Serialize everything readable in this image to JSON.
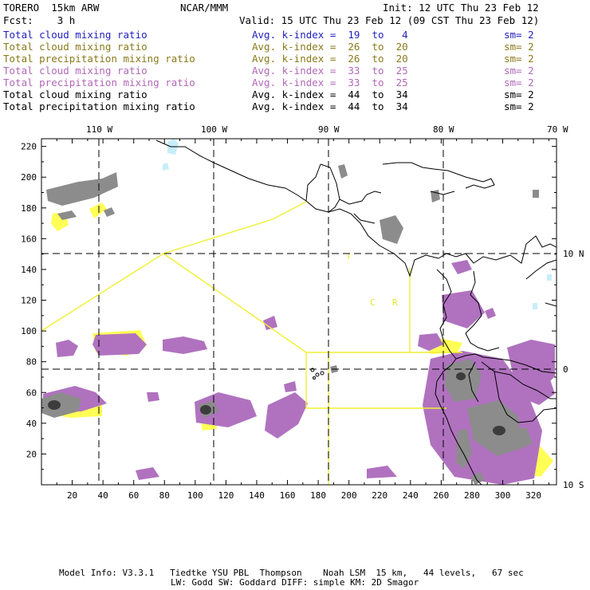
{
  "header": {
    "model": "TORERO  15km ARW",
    "center": "NCAR/MMM",
    "init": "Init: 12 UTC Thu 23 Feb 12",
    "fcst": "Fcst:    3 h",
    "valid": "Valid: 15 UTC Thu 23 Feb 12 (09 CST Thu 23 Feb 12)"
  },
  "legend": [
    {
      "field": "Total cloud mixing ratio",
      "kindex": "Avg. k-index =  19  to   4",
      "sm": "sm= 2",
      "color": "#1f1fbf"
    },
    {
      "field": "Total cloud mixing ratio",
      "kindex": "Avg. k-index =  26  to  20",
      "sm": "sm= 2",
      "color": "#8a7a1a"
    },
    {
      "field": "Total precipitation mixing ratio",
      "kindex": "Avg. k-index =  26  to  20",
      "sm": "sm= 2",
      "color": "#8a7a1a"
    },
    {
      "field": "Total cloud mixing ratio",
      "kindex": "Avg. k-index =  33  to  25",
      "sm": "sm= 2",
      "color": "#b068b8"
    },
    {
      "field": "Total precipitation mixing ratio",
      "kindex": "Avg. k-index =  33  to  25",
      "sm": "sm= 2",
      "color": "#b068b8"
    },
    {
      "field": "Total cloud mixing ratio",
      "kindex": "Avg. k-index =  44  to  34",
      "sm": "sm= 2",
      "color": "#000000"
    },
    {
      "field": "Total precipitation mixing ratio",
      "kindex": "Avg. k-index =  44  to  34",
      "sm": "sm= 2",
      "color": "#000000"
    }
  ],
  "map": {
    "lon_labels": [
      "110 W",
      "100 W",
      "90 W",
      "80 W",
      "70 W"
    ],
    "lat_labels": [
      "10 N",
      "0",
      "10 S"
    ],
    "x_ticks": [
      "20",
      "40",
      "60",
      "80",
      "100",
      "120",
      "140",
      "160",
      "180",
      "200",
      "220",
      "240",
      "260",
      "280",
      "300",
      "320"
    ],
    "y_ticks": [
      "220",
      "200",
      "180",
      "160",
      "140",
      "120",
      "100",
      "80",
      "60",
      "40",
      "20"
    ],
    "region_labels": [
      "C",
      "R"
    ],
    "colors": {
      "gray": "#8c8c8c",
      "dark": "#3c3c3c",
      "purple": "#b072bf",
      "yellow": "#ffff55",
      "cyan": "#c8eefa",
      "domain": "#f0f032"
    }
  },
  "footer": {
    "line1": "Model Info: V3.3.1   Tiedtke YSU PBL  Thompson    Noah LSM  15 km,   44 levels,   67 sec",
    "line2": "LW: Godd SW: Goddard DIFF: simple KM: 2D Smagor"
  }
}
